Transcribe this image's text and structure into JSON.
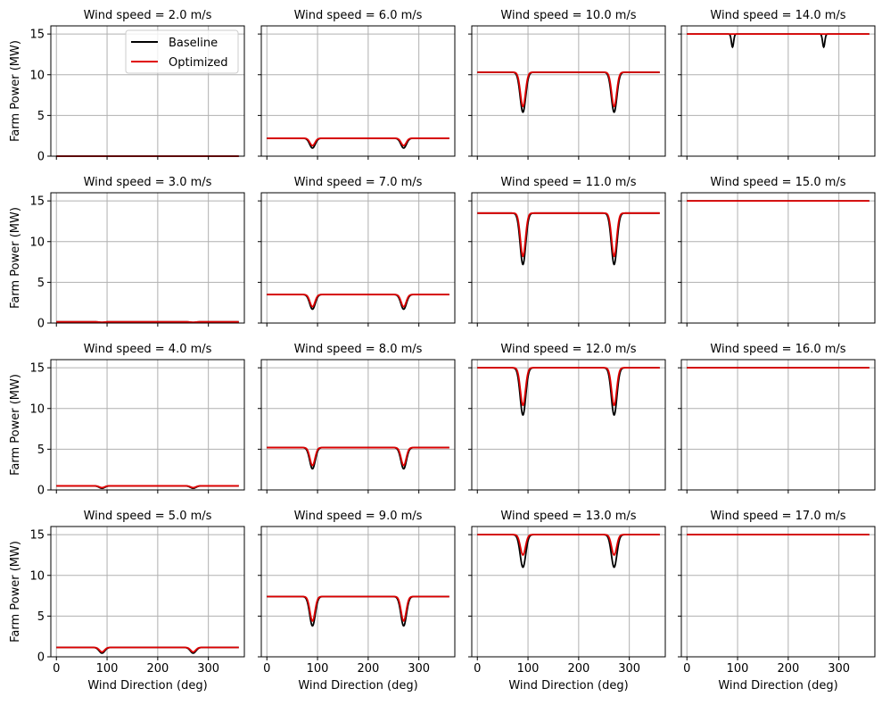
{
  "figure": {
    "line_colors": {
      "baseline": "#000000",
      "optimized": "#e00000",
      "grid": "#b0b0b0"
    }
  },
  "legend": {
    "entries": [
      "Baseline",
      "Optimized"
    ],
    "location": "upper-right of first panel"
  },
  "chart_data": [
    {
      "type": "line",
      "title": "Wind speed = 2.0 m/s",
      "wind_speed": 2.0,
      "baseline_level": 0.0,
      "baseline_dip": 0.0,
      "optimized_level": 0.0,
      "optimized_dip": 0.0
    },
    {
      "type": "line",
      "title": "Wind speed = 6.0 m/s",
      "wind_speed": 6.0,
      "baseline_level": 2.2,
      "baseline_dip": 1.0,
      "optimized_level": 2.2,
      "optimized_dip": 1.3
    },
    {
      "type": "line",
      "title": "Wind speed = 10.0 m/s",
      "wind_speed": 10.0,
      "baseline_level": 10.3,
      "baseline_dip": 5.4,
      "optimized_level": 10.3,
      "optimized_dip": 6.1
    },
    {
      "type": "line",
      "title": "Wind speed = 14.0 m/s",
      "wind_speed": 14.0,
      "baseline_level": 15.0,
      "baseline_dip": 13.4,
      "optimized_level": 15.0,
      "optimized_dip": 15.0
    },
    {
      "type": "line",
      "title": "Wind speed = 3.0 m/s",
      "wind_speed": 3.0,
      "baseline_level": 0.15,
      "baseline_dip": 0.08,
      "optimized_level": 0.15,
      "optimized_dip": 0.09
    },
    {
      "type": "line",
      "title": "Wind speed = 7.0 m/s",
      "wind_speed": 7.0,
      "baseline_level": 3.5,
      "baseline_dip": 1.7,
      "optimized_level": 3.5,
      "optimized_dip": 2.0
    },
    {
      "type": "line",
      "title": "Wind speed = 11.0 m/s",
      "wind_speed": 11.0,
      "baseline_level": 13.5,
      "baseline_dip": 7.2,
      "optimized_level": 13.5,
      "optimized_dip": 8.2
    },
    {
      "type": "line",
      "title": "Wind speed = 15.0 m/s",
      "wind_speed": 15.0,
      "baseline_level": 15.0,
      "baseline_dip": 15.0,
      "optimized_level": 15.0,
      "optimized_dip": 15.0
    },
    {
      "type": "line",
      "title": "Wind speed = 4.0 m/s",
      "wind_speed": 4.0,
      "baseline_level": 0.5,
      "baseline_dip": 0.2,
      "optimized_level": 0.5,
      "optimized_dip": 0.28
    },
    {
      "type": "line",
      "title": "Wind speed = 8.0 m/s",
      "wind_speed": 8.0,
      "baseline_level": 5.2,
      "baseline_dip": 2.6,
      "optimized_level": 5.2,
      "optimized_dip": 3.0
    },
    {
      "type": "line",
      "title": "Wind speed = 12.0 m/s",
      "wind_speed": 12.0,
      "baseline_level": 15.0,
      "baseline_dip": 9.2,
      "optimized_level": 15.0,
      "optimized_dip": 10.4
    },
    {
      "type": "line",
      "title": "Wind speed = 16.0 m/s",
      "wind_speed": 16.0,
      "baseline_level": 15.0,
      "baseline_dip": 15.0,
      "optimized_level": 15.0,
      "optimized_dip": 15.0
    },
    {
      "type": "line",
      "title": "Wind speed = 5.0 m/s",
      "wind_speed": 5.0,
      "baseline_level": 1.15,
      "baseline_dip": 0.45,
      "optimized_level": 1.15,
      "optimized_dip": 0.6
    },
    {
      "type": "line",
      "title": "Wind speed = 9.0 m/s",
      "wind_speed": 9.0,
      "baseline_level": 7.4,
      "baseline_dip": 3.8,
      "optimized_level": 7.4,
      "optimized_dip": 4.4
    },
    {
      "type": "line",
      "title": "Wind speed = 13.0 m/s",
      "wind_speed": 13.0,
      "baseline_level": 15.0,
      "baseline_dip": 11.0,
      "optimized_level": 15.0,
      "optimized_dip": 12.5
    },
    {
      "type": "line",
      "title": "Wind speed = 17.0 m/s",
      "wind_speed": 17.0,
      "baseline_level": 15.0,
      "baseline_dip": 15.0,
      "optimized_level": 15.0,
      "optimized_dip": 15.0
    }
  ],
  "axes": {
    "xlabel": "Wind Direction (deg)",
    "ylabel": "Farm Power (MW)",
    "xlim": [
      -11,
      371
    ],
    "ylim": [
      0,
      16
    ],
    "xticks": [
      0,
      100,
      200,
      300
    ],
    "yticks": [
      0,
      5,
      10,
      15
    ],
    "dip_centers_deg": [
      90,
      270
    ],
    "x_range": [
      0,
      360
    ]
  }
}
